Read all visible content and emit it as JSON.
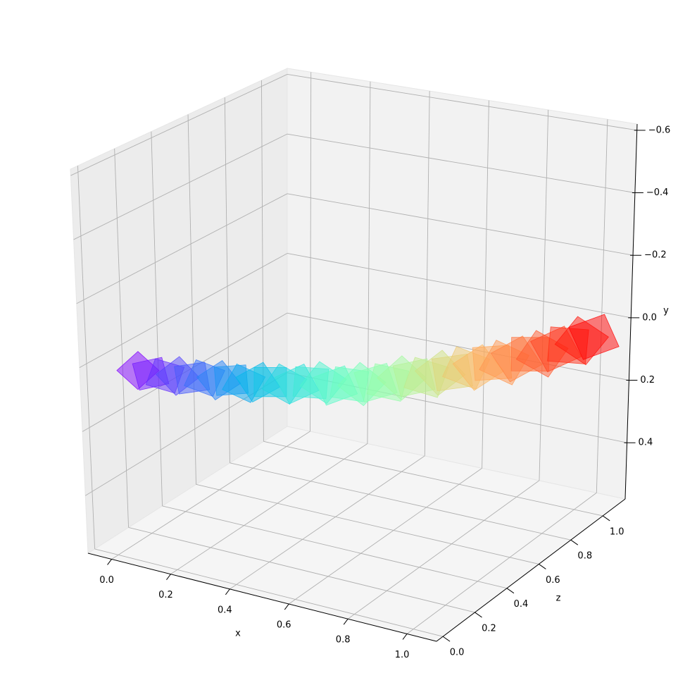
{
  "chart_data": {
    "type": "polygon3d",
    "colormap": "rainbow",
    "alpha": 0.5,
    "xlabel": "x",
    "ylabel": "y",
    "zlabel": "z",
    "xlim": [
      -0.08,
      1.1
    ],
    "ylim": [
      -0.62,
      0.58
    ],
    "y_inverted": true,
    "zlim": [
      -0.04,
      1.14
    ],
    "xticks": [
      {
        "value": 0,
        "label": "0.0"
      },
      0.2,
      0.4,
      0.6,
      0.8,
      {
        "value": 1,
        "label": "1.0"
      }
    ],
    "yticks": [
      {
        "value": -0.6,
        "label": "−0.6"
      },
      {
        "value": -0.4,
        "label": "−0.4"
      },
      {
        "value": -0.2,
        "label": "−0.2"
      },
      {
        "value": 0,
        "label": "0.0"
      },
      0.2,
      0.4
    ],
    "zticks": [
      {
        "value": 0,
        "label": "0.0"
      },
      0.2,
      0.4,
      0.6,
      0.8,
      {
        "value": 1,
        "label": "1.0"
      }
    ],
    "grid": true,
    "x": [
      0,
      0.03,
      0.06,
      0.09,
      0.12,
      0.15,
      0.18,
      0.21,
      0.24,
      0.27,
      0.3,
      0.33,
      0.36,
      0.39,
      0.42,
      0.45,
      0.48,
      0.51,
      0.54,
      0.57,
      0.6,
      0.63,
      0.66,
      0.69,
      0.72,
      0.75,
      0.78,
      0.81,
      0.84,
      0.87,
      0.9,
      0.93,
      0.96,
      0.99,
      1.02,
      1.05
    ],
    "y": [
      0.05,
      0.06,
      0.07,
      0.07,
      0.08,
      0.08,
      0.09,
      0.09,
      0.1,
      0.1,
      0.1,
      0.11,
      0.11,
      0.11,
      0.11,
      0.12,
      0.12,
      0.12,
      0.12,
      0.12,
      0.11,
      0.11,
      0.11,
      0.1,
      0.1,
      0.09,
      0.09,
      0.08,
      0.08,
      0.07,
      0.06,
      0.06,
      0.05,
      0.04,
      0.03,
      0.02
    ],
    "z": [
      0.15,
      0.17,
      0.2,
      0.22,
      0.25,
      0.27,
      0.3,
      0.32,
      0.34,
      0.37,
      0.39,
      0.42,
      0.44,
      0.47,
      0.49,
      0.51,
      0.54,
      0.56,
      0.59,
      0.61,
      0.64,
      0.66,
      0.68,
      0.71,
      0.73,
      0.76,
      0.78,
      0.81,
      0.83,
      0.85,
      0.88,
      0.9,
      0.93,
      0.95,
      0.98,
      1.0
    ]
  }
}
